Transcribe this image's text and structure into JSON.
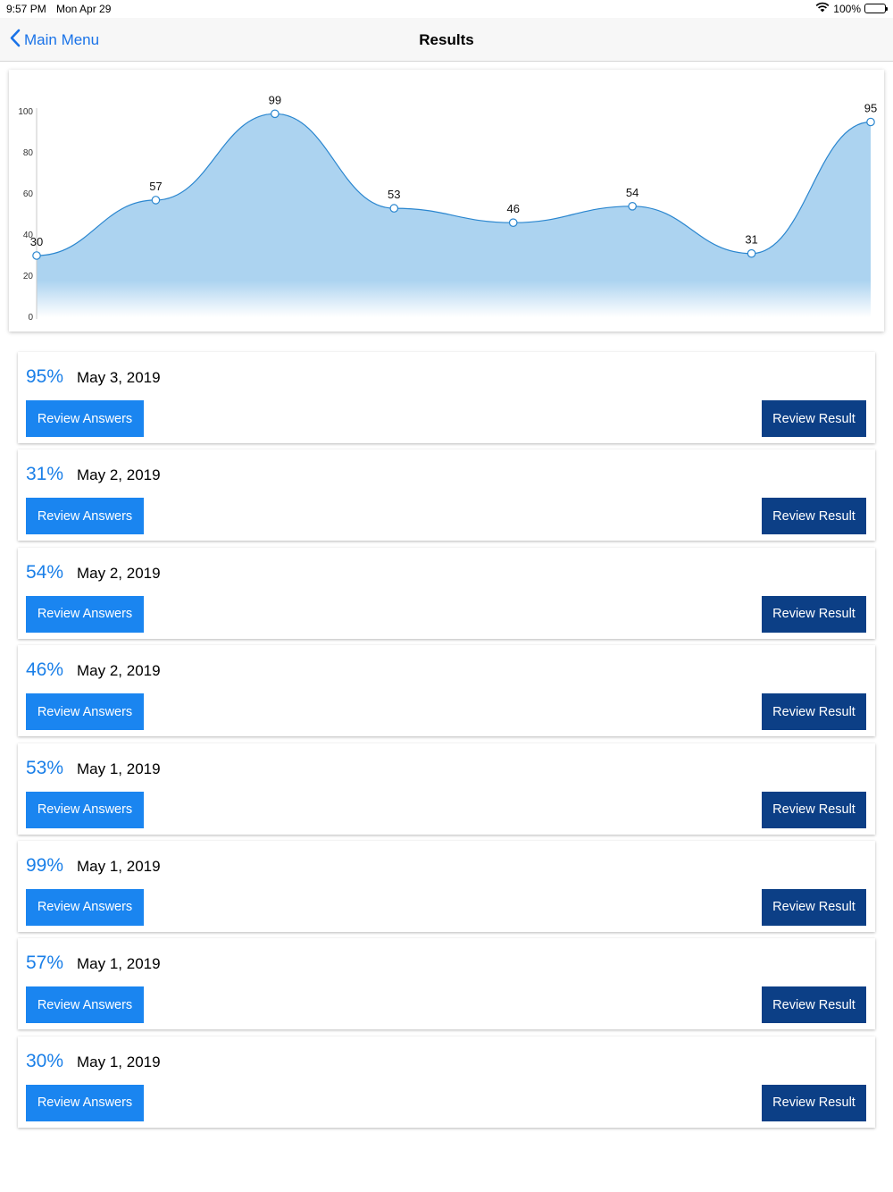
{
  "status_bar": {
    "time": "9:57 PM",
    "date": "Mon Apr 29",
    "battery": "100%"
  },
  "nav": {
    "back_label": "Main Menu",
    "title": "Results"
  },
  "chart_data": {
    "type": "area",
    "x": [
      0,
      1,
      2,
      3,
      4,
      5,
      6,
      7
    ],
    "values": [
      30,
      57,
      99,
      53,
      46,
      54,
      31,
      95
    ],
    "data_labels": [
      "30",
      "57",
      "99",
      "53",
      "46",
      "54",
      "31",
      "95"
    ],
    "y_ticks": [
      "0",
      "20",
      "40",
      "60",
      "80",
      "100"
    ],
    "ylim": [
      0,
      100
    ],
    "grid": false,
    "legend": "none",
    "fill_color": "#acd3f0",
    "line_color": "#2a86cf"
  },
  "results": [
    {
      "score": "95%",
      "date": "May 3, 2019"
    },
    {
      "score": "31%",
      "date": "May 2, 2019"
    },
    {
      "score": "54%",
      "date": "May 2, 2019"
    },
    {
      "score": "46%",
      "date": "May 2, 2019"
    },
    {
      "score": "53%",
      "date": "May 1, 2019"
    },
    {
      "score": "99%",
      "date": "May 1, 2019"
    },
    {
      "score": "57%",
      "date": "May 1, 2019"
    },
    {
      "score": "30%",
      "date": "May 1, 2019"
    }
  ],
  "buttons": {
    "review_answers": "Review Answers",
    "review_result": "Review Result"
  },
  "colors": {
    "accent": "#1a85f0",
    "dark_button": "#0c3f86",
    "score_text": "#1a7fe8"
  }
}
